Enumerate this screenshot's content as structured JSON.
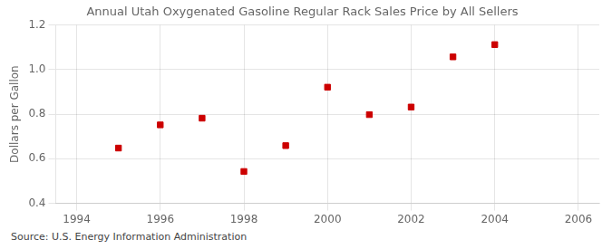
{
  "chart_data": {
    "type": "scatter",
    "title": "Annual Utah Oxygenated Gasoline Regular Rack Sales Price by All Sellers",
    "ylabel": "Dollars per Gallon",
    "source": "Source: U.S. Energy Information Administration",
    "x": [
      1995,
      1996,
      1997,
      1998,
      1999,
      2000,
      2001,
      2002,
      2003,
      2004
    ],
    "values": [
      0.648,
      0.752,
      0.782,
      0.543,
      0.659,
      0.921,
      0.798,
      0.832,
      1.057,
      1.112
    ],
    "color": "#cc0000",
    "marker": "square",
    "xlim": [
      1993.5,
      2006.5
    ],
    "ylim": [
      0.4,
      1.2
    ],
    "xticks": [
      1994,
      1996,
      1998,
      2000,
      2002,
      2004,
      2006
    ],
    "yticks": [
      0.4,
      0.6,
      0.8,
      {
        "value": 1.0,
        "label": "1.0"
      },
      1.2
    ],
    "grid": true
  }
}
